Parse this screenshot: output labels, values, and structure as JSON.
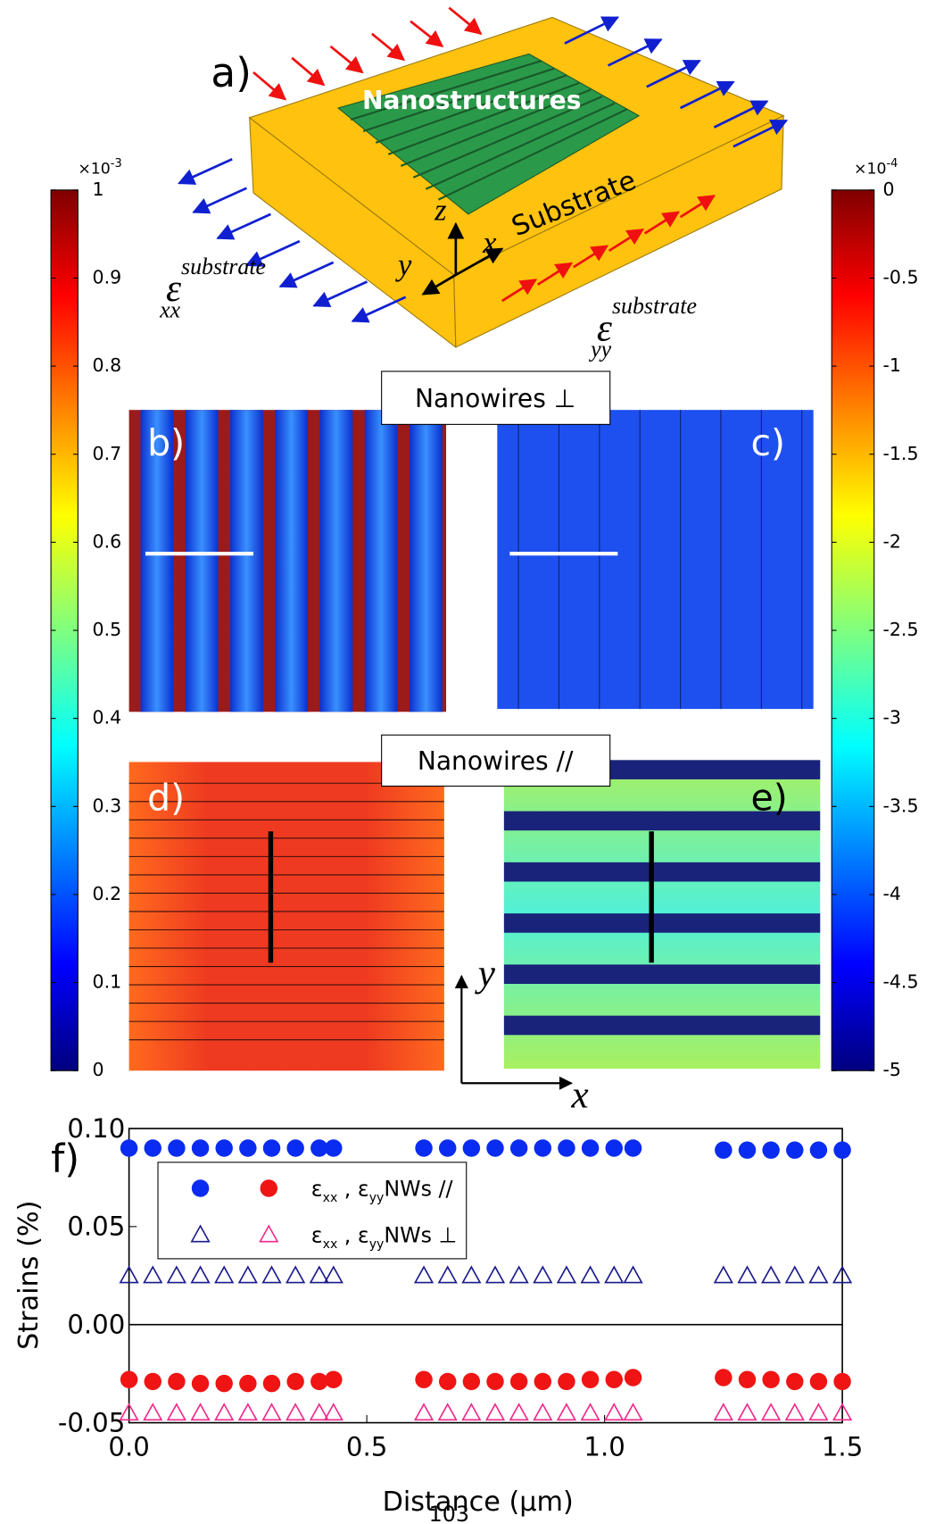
{
  "figure": {
    "panel_a": {
      "label": "a)",
      "nanostructures": "Nanostructures",
      "substrate": "Substrate",
      "axis_z": "z",
      "axis_x": "x",
      "axis_y": "y",
      "strain_xx": {
        "symbol": "ε",
        "sup": "substrate",
        "sub": "xx"
      },
      "strain_yy": {
        "symbol": "ε",
        "sup": "substrate",
        "sub": "yy"
      }
    },
    "nanowires_perp": "Nanowires ⊥",
    "nanowires_par": "Nanowires //",
    "panel_labels": [
      "b)",
      "c)",
      "d)",
      "e)"
    ],
    "axes_labels": {
      "y": "y",
      "x": "x"
    },
    "colorbar_left": {
      "exponent": {
        "base": "×10",
        "power": "-3"
      },
      "lim": [
        0,
        1
      ],
      "ticks": [
        0,
        0.1,
        0.2,
        0.3,
        0.4,
        0.5,
        0.6,
        0.7,
        0.8,
        0.9,
        1
      ]
    },
    "colorbar_right": {
      "exponent": {
        "base": "×10",
        "power": "-4"
      },
      "lim": [
        -5,
        0
      ],
      "ticks": [
        0,
        -0.5,
        -1,
        -1.5,
        -2,
        -2.5,
        -3,
        -3.5,
        -4,
        -4.5,
        -5
      ]
    }
  },
  "chart_data": {
    "type": "scatter",
    "panel_label": "f)",
    "x_label": "Distance (µm)",
    "y_label": "Strains (%)",
    "xlim": [
      0,
      1.5
    ],
    "xticks": [
      {
        "value": 0,
        "label": "0.0"
      },
      0.5,
      {
        "value": 1,
        "label": "1.0"
      },
      1.5
    ],
    "ylim": [
      -0.05,
      0.1
    ],
    "yticks": [
      {
        "value": -0.05,
        "label": "-0.05"
      },
      {
        "value": 0,
        "label": "0.00"
      },
      0.05,
      {
        "value": 0.1,
        "label": "0.10"
      }
    ],
    "zero_line": true,
    "x": [
      0,
      0.05,
      0.1,
      0.15,
      0.2,
      0.25,
      0.3,
      0.35,
      0.4,
      0.43,
      0.62,
      0.67,
      0.72,
      0.77,
      0.82,
      0.87,
      0.92,
      0.97,
      1.02,
      1.06,
      1.25,
      1.3,
      1.35,
      1.4,
      1.45,
      1.5
    ],
    "series": [
      {
        "color": "#0a2cf0",
        "marker": "circle",
        "values": [
          0.09,
          0.09,
          0.09,
          0.09,
          0.09,
          0.09,
          0.09,
          0.09,
          0.09,
          0.09,
          0.09,
          0.09,
          0.09,
          0.09,
          0.09,
          0.09,
          0.09,
          0.09,
          0.09,
          0.09,
          0.089,
          0.089,
          0.089,
          0.089,
          0.089,
          0.089
        ]
      },
      {
        "color": "#f01414",
        "marker": "circle",
        "values": [
          -0.028,
          -0.029,
          -0.029,
          -0.03,
          -0.03,
          -0.03,
          -0.03,
          -0.029,
          -0.029,
          -0.028,
          -0.028,
          -0.029,
          -0.029,
          -0.029,
          -0.029,
          -0.029,
          -0.029,
          -0.028,
          -0.028,
          -0.027,
          -0.027,
          -0.028,
          -0.028,
          -0.029,
          -0.029,
          -0.029
        ]
      },
      {
        "color": "#1a1a8c",
        "marker": "triangle",
        "values": [
          0.025,
          0.025,
          0.025,
          0.025,
          0.025,
          0.025,
          0.025,
          0.025,
          0.025,
          0.025,
          0.025,
          0.025,
          0.025,
          0.025,
          0.025,
          0.025,
          0.025,
          0.025,
          0.025,
          0.025,
          0.025,
          0.025,
          0.025,
          0.025,
          0.025,
          0.025
        ]
      },
      {
        "color": "#f0288c",
        "marker": "triangle",
        "values": [
          -0.045,
          -0.045,
          -0.045,
          -0.045,
          -0.045,
          -0.045,
          -0.045,
          -0.045,
          -0.045,
          -0.045,
          -0.045,
          -0.045,
          -0.045,
          -0.045,
          -0.045,
          -0.045,
          -0.045,
          -0.045,
          -0.045,
          -0.045,
          -0.045,
          -0.045,
          -0.045,
          -0.045,
          -0.045,
          -0.045
        ]
      }
    ],
    "legend": [
      {
        "eps1": "ε",
        "sub1": "xx",
        "eps2": " , ε",
        "sub2": "yy",
        "text": "NWs //"
      },
      {
        "eps1": "ε",
        "sub1": "xx",
        "eps2": " , ε",
        "sub2": "yy",
        "text": "NWs ⊥"
      }
    ]
  },
  "page_number": "103"
}
